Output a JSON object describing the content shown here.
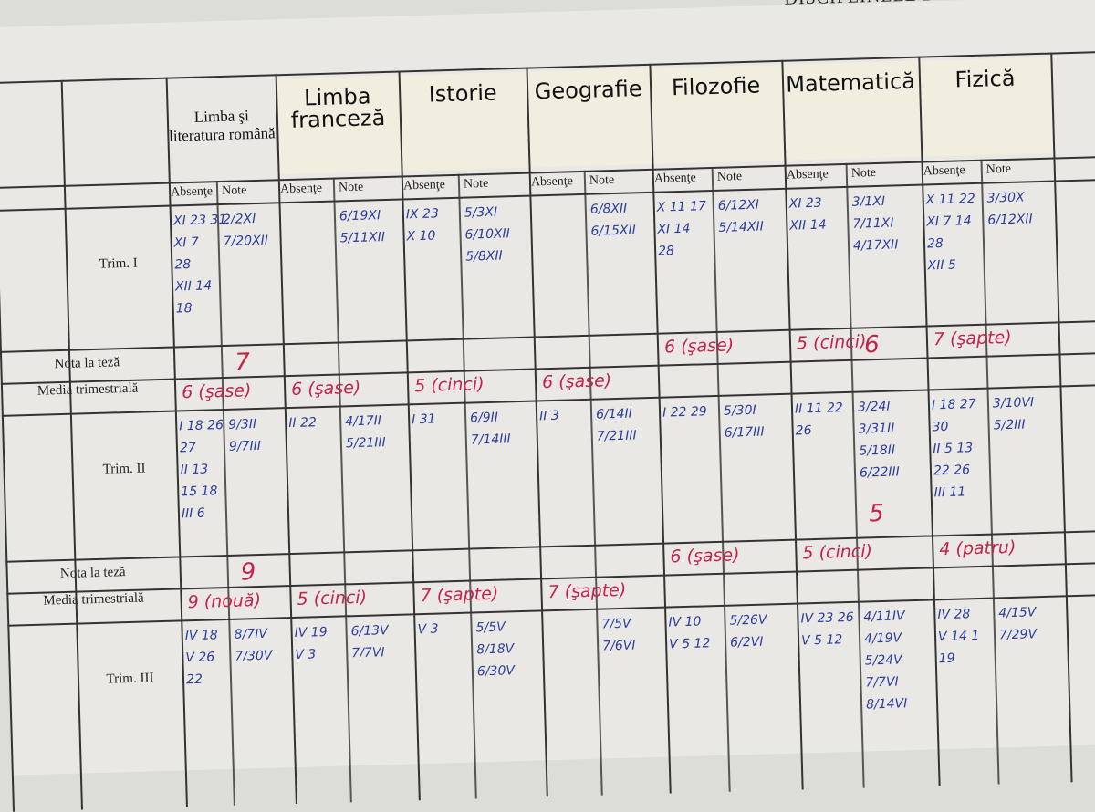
{
  "title": "DISCIPLINELE DE",
  "column_labels": {
    "absente": "Absenţe",
    "note": "Note"
  },
  "row_labels": {
    "trim1": "Trim. I",
    "teza1": "Nota la teză",
    "media1": "Media trimestrială",
    "trim2": "Trim. II",
    "teza2": "Nota la teză",
    "media2": "Media trimestrială",
    "trim3": "Trim. III"
  },
  "subjects": [
    {
      "name": "Limba şi literatura română",
      "printed": true,
      "trim1": {
        "absente": "XI 23 31\nXI 7\n28\nXII 14\n18",
        "note": "2/2XI\n7/20XII"
      },
      "teza1": "7",
      "media1": "6 (şase)",
      "trim2": {
        "absente": "I 18 26\n27\nII 13\n15 18\nIII 6",
        "note": "9/3II\n9/7III"
      },
      "teza2": "9",
      "media2": "9 (nouă)",
      "trim3": {
        "absente": "IV 18\nV 26\n22",
        "note": "8/7IV\n7/30V"
      }
    },
    {
      "name": "Limba franceză",
      "trim1": {
        "absente": "",
        "note": "6/19XI\n5/11XII"
      },
      "media1": "6 (şase)",
      "trim2": {
        "absente": "II 22",
        "note": "4/17II\n5/21III"
      },
      "media2": "5 (cinci)",
      "trim3": {
        "absente": "IV 19\nV 3",
        "note": "6/13V\n7/7VI"
      }
    },
    {
      "name": "Istorie",
      "trim1": {
        "absente": "IX 23\nX 10",
        "note": "5/3XI\n6/10XII\n5/8XII"
      },
      "media1": "5 (cinci)",
      "trim2": {
        "absente": "I 31",
        "note": "6/9II\n7/14III"
      },
      "media2": "7 (şapte)",
      "trim3": {
        "absente": "V 3",
        "note": "5/5V\n8/18V\n6/30V"
      }
    },
    {
      "name": "Geografie",
      "trim1": {
        "absente": "",
        "note": "6/8XII\n6/15XII"
      },
      "media1": "6 (şase)",
      "trim2": {
        "absente": "II 3",
        "note": "6/14II\n7/21III"
      },
      "media2": "7 (şapte)",
      "trim3": {
        "absente": "",
        "note": "7/5V\n7/6VI"
      }
    },
    {
      "name": "Filozofie",
      "trim1": {
        "absente": "X 11 17\nXI 14\n28",
        "note": "6/12XI\n5/14XII"
      },
      "media1": "6 (şase)",
      "trim2": {
        "absente": "I 22 29",
        "note": "5/30I\n6/17III"
      },
      "media2": "6 (şase)",
      "trim3": {
        "absente": "IV 10\nV 5 12",
        "note": "5/26V\n6/2VI"
      }
    },
    {
      "name": "Matematică",
      "trim1": {
        "absente": "XI 23\nXII 14",
        "note": "3/1XI\n7/11XI\n4/17XII"
      },
      "teza1": "6",
      "media1": "5 (cinci)",
      "trim2": {
        "absente": "II 11 22\n26",
        "note": "3/24I\n3/31II\n5/18II\n6/22III"
      },
      "teza2": "5",
      "media2": "5 (cinci)",
      "trim3": {
        "absente": "IV 23 26\nV 5 12",
        "note": "4/11IV\n4/19V\n5/24V\n7/7VI\n8/14VI"
      }
    },
    {
      "name": "Fizică",
      "trim1": {
        "absente": "X 11 22\nXI 7 14\n28\nXII 5",
        "note": "3/30X\n6/12XII"
      },
      "media1": "7 (şapte)",
      "trim2": {
        "absente": "I 18 27\n30\nII 5 13\n22 26\nIII 11",
        "note": "3/10VI\n5/2III"
      },
      "media2": "4 (patru)",
      "trim3": {
        "absente": "IV 28\nV 14 1\n19",
        "note": "4/15V\n7/29V"
      }
    }
  ],
  "colors": {
    "paper": "#e9e8e4",
    "ink_blue": "#2b3d9e",
    "ink_red": "#c4244a"
  }
}
